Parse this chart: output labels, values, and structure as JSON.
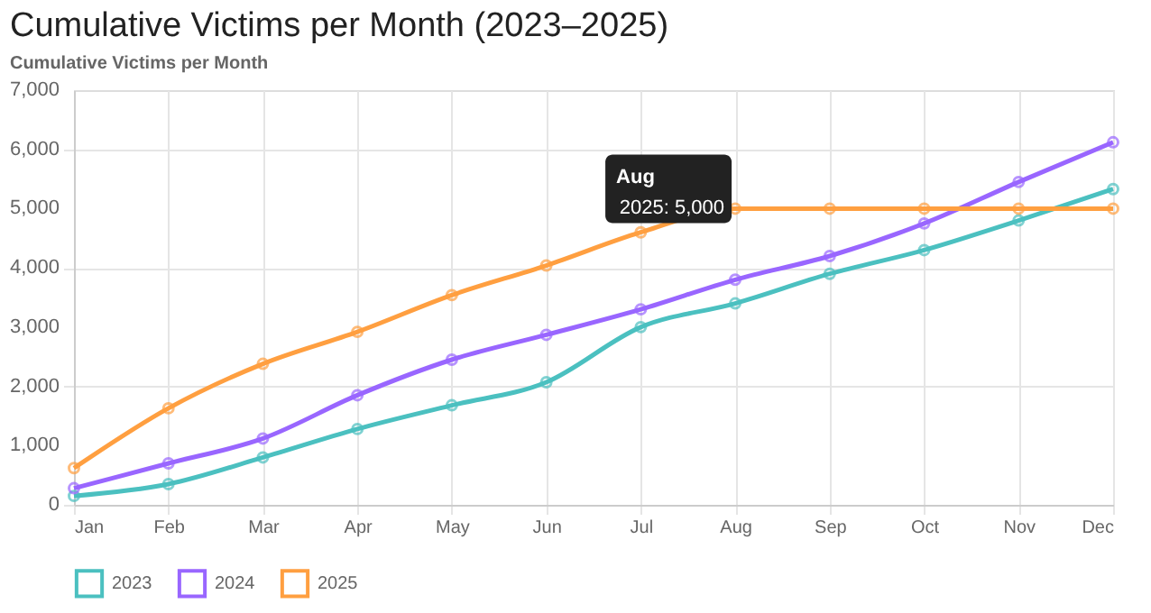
{
  "chart_data": {
    "type": "line",
    "title": "Cumulative Victims per Month (2023–2025)",
    "subtitle": "Cumulative Victims per Month",
    "categories": [
      "Jan",
      "Feb",
      "Mar",
      "Apr",
      "May",
      "Jun",
      "Jul",
      "Aug",
      "Sep",
      "Oct",
      "Nov",
      "Dec"
    ],
    "series": [
      {
        "name": "2023",
        "color": "#4bc0c0",
        "values": [
          150,
          350,
          800,
          1280,
          1680,
          2070,
          3000,
          3400,
          3900,
          4300,
          4800,
          5330
        ]
      },
      {
        "name": "2024",
        "color": "#9966ff",
        "values": [
          280,
          700,
          1120,
          1850,
          2450,
          2870,
          3300,
          3800,
          4200,
          4750,
          5450,
          6120
        ]
      },
      {
        "name": "2025",
        "color": "#ff9f40",
        "values": [
          620,
          1630,
          2380,
          2920,
          3540,
          4040,
          4600,
          5000,
          5000,
          5000,
          5000,
          5000
        ]
      }
    ],
    "ylim": [
      0,
      7000
    ],
    "yticks": [
      0,
      {
        "value": 1000,
        "label": "1,000"
      },
      {
        "value": 2000,
        "label": "2,000"
      },
      {
        "value": 3000,
        "label": "3,000"
      },
      {
        "value": 4000,
        "label": "4,000"
      },
      {
        "value": 5000,
        "label": "5,000"
      },
      {
        "value": 6000,
        "label": "6,000"
      },
      {
        "value": 7000,
        "label": "7,000"
      }
    ],
    "grid": true,
    "legend": "bottom",
    "marker": "circle",
    "line_style": "solid",
    "annotations": [
      "Aug",
      {
        "text": "2025: 5,000",
        "x": "Aug",
        "y": 5000
      }
    ]
  }
}
